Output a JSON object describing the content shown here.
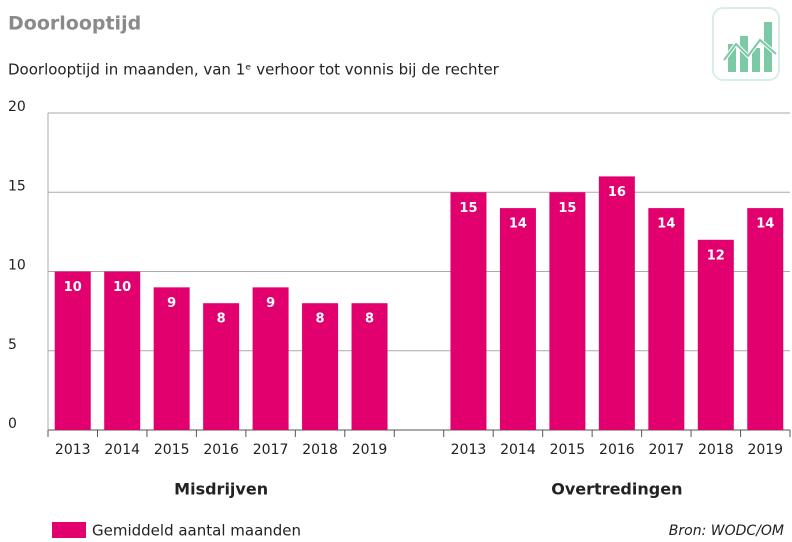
{
  "chart_data": {
    "type": "bar",
    "title": "Doorlooptijd",
    "subtitle": "Doorlooptijd in maanden, van 1ᵉ verhoor tot vonnis bij de rechter",
    "categories": [
      "2013",
      "2014",
      "2015",
      "2016",
      "2017",
      "2018",
      "2019",
      null,
      "2013",
      "2014",
      "2015",
      "2016",
      "2017",
      "2018",
      "2019"
    ],
    "series": [
      {
        "name": "Gemiddeld aantal maanden",
        "color": "#e2006f",
        "values": [
          10,
          10,
          9,
          8,
          9,
          8,
          8,
          null,
          15,
          14,
          15,
          16,
          14,
          12,
          14
        ]
      }
    ],
    "groups": [
      "Misdrijven",
      "Overtredingen"
    ],
    "ylim": [
      0,
      20
    ],
    "yticks": [
      0,
      5,
      10,
      15,
      20
    ],
    "grid": true,
    "source": "Bron:  WODC/OM"
  }
}
